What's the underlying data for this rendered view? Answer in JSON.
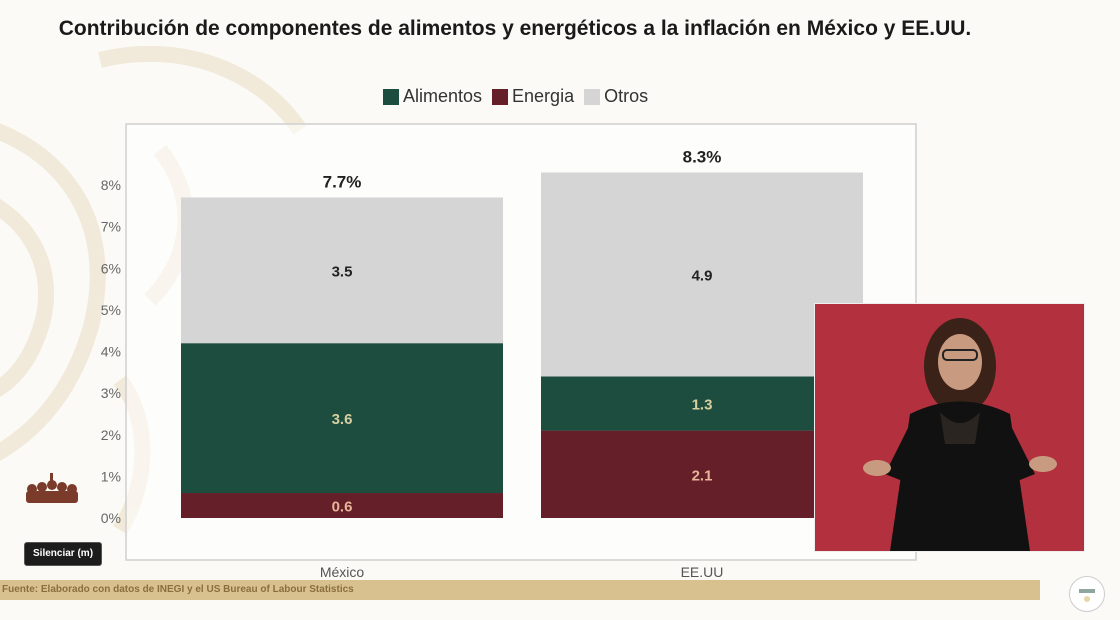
{
  "slide": {
    "title": "Contribución de componentes de alimentos y energéticos a la inflación en México y EE.UU.",
    "source": "Fuente: Elaborado con datos de INEGI y el US Bureau of Labour Statistics",
    "mute_button": "Silenciar (m)",
    "interpreter_video": "sign-language-interpreter"
  },
  "legend": [
    {
      "label": "Alimentos",
      "color": "#1d4d3f"
    },
    {
      "label": "Energia",
      "color": "#641f28"
    },
    {
      "label": "Otros",
      "color": "#d5d5d5"
    }
  ],
  "chart_data": {
    "type": "bar",
    "stacked": true,
    "title": "Contribución de componentes de alimentos y energéticos a la inflación en México y EE.UU.",
    "categories": [
      "México",
      "EE.UU"
    ],
    "series": [
      {
        "name": "Energia",
        "color": "#641f28",
        "label_color": "#e8b49a",
        "values": [
          0.6,
          2.1
        ]
      },
      {
        "name": "Alimentos",
        "color": "#1d4d3f",
        "label_color": "#d8cfa0",
        "values": [
          3.6,
          1.3
        ]
      },
      {
        "name": "Otros",
        "color": "#d5d5d5",
        "label_color": "#222222",
        "values": [
          3.5,
          4.9
        ]
      }
    ],
    "totals": [
      "7.7%",
      "8.3%"
    ],
    "ylim": [
      0,
      8
    ],
    "yticks": [
      "0%",
      "1%",
      "2%",
      "3%",
      "4%",
      "5%",
      "6%",
      "7%",
      "8%"
    ],
    "xlabel": "",
    "ylabel": "",
    "grid": false,
    "legend_position": "top"
  }
}
